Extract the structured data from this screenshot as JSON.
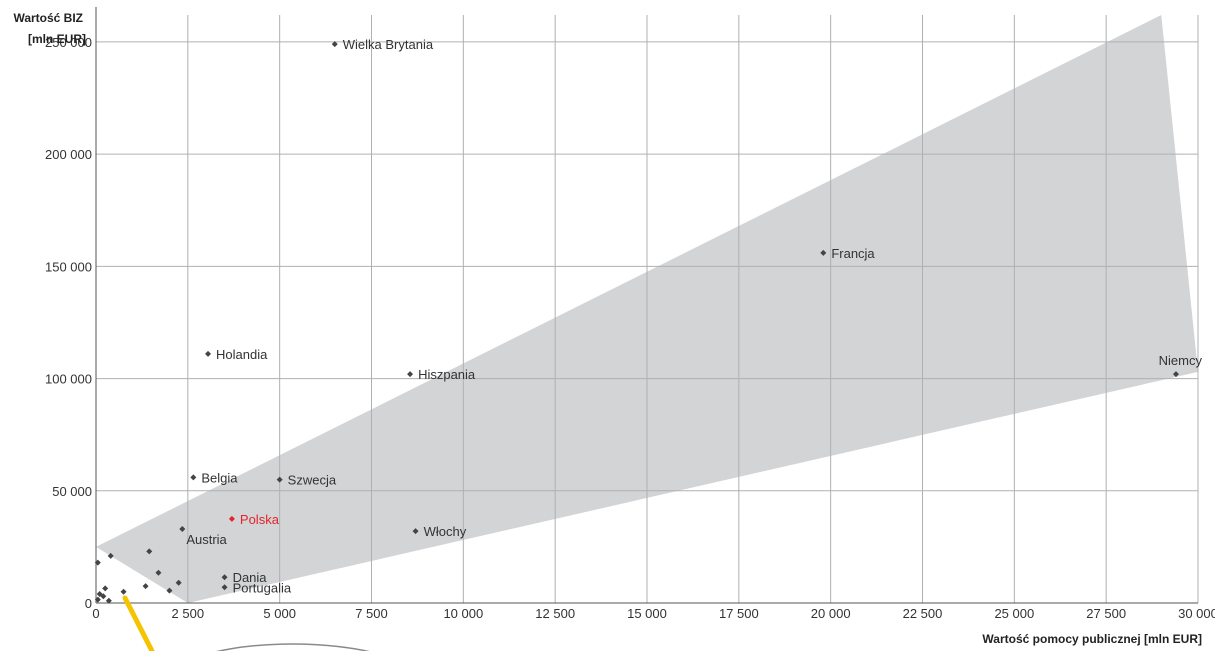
{
  "chart_data": {
    "type": "scatter",
    "xlabel": "Wartość pomocy publicznej [mln EUR]",
    "ylabel_line1": "Wartość BIZ",
    "ylabel_line2": "[mln EUR]",
    "xlim": [
      0,
      30000
    ],
    "ylim": [
      0,
      262000
    ],
    "x_ticks": [
      0,
      2500,
      5000,
      7500,
      10000,
      12500,
      15000,
      17500,
      20000,
      22500,
      25000,
      27500,
      30000
    ],
    "x_tick_labels": [
      "0",
      "2 500",
      "5 000",
      "7 500",
      "10 000",
      "12 500",
      "15 000",
      "17 500",
      "20 000",
      "22 500",
      "25 000",
      "27 500",
      "30 000"
    ],
    "y_ticks": [
      0,
      50000,
      100000,
      150000,
      200000,
      250000
    ],
    "y_tick_labels": [
      "0",
      "50 000",
      "100 000",
      "150 000",
      "200 000",
      "250 000"
    ],
    "grid": true,
    "band": {
      "upper_start": [
        0,
        25000
      ],
      "upper_end": [
        29000,
        262000
      ],
      "lower_start": [
        2500,
        0
      ],
      "lower_end": [
        30000,
        103000
      ],
      "color": "#d3d4d6"
    },
    "colors": {
      "point": "#444444",
      "highlight": "#e3242b",
      "grid": "#b0b0b0",
      "annotation": "#f5c400"
    },
    "points": [
      {
        "label": "Wielka Brytania",
        "x": 6500,
        "y": 249000
      },
      {
        "label": "Francja",
        "x": 19800,
        "y": 156000
      },
      {
        "label": "Niemcy",
        "x": 29400,
        "y": 102000,
        "label_side": "left-above"
      },
      {
        "label": "Holandia",
        "x": 3050,
        "y": 111000
      },
      {
        "label": "Hiszpania",
        "x": 8550,
        "y": 102000
      },
      {
        "label": "Belgia",
        "x": 2650,
        "y": 56000
      },
      {
        "label": "Szwecja",
        "x": 5000,
        "y": 55000
      },
      {
        "label": "Polska",
        "x": 3700,
        "y": 37500,
        "highlight": true
      },
      {
        "label": "Austria",
        "x": 2350,
        "y": 33000,
        "label_side": "below"
      },
      {
        "label": "Włochy",
        "x": 8700,
        "y": 32000
      },
      {
        "label": "Dania",
        "x": 3500,
        "y": 11500
      },
      {
        "label": "Portugalia",
        "x": 3500,
        "y": 7000
      },
      {
        "label": "",
        "x": 50,
        "y": 18000
      },
      {
        "label": "",
        "x": 100,
        "y": 4000
      },
      {
        "label": "",
        "x": 200,
        "y": 3000
      },
      {
        "label": "",
        "x": 250,
        "y": 6500
      },
      {
        "label": "",
        "x": 50,
        "y": 1500
      },
      {
        "label": "",
        "x": 350,
        "y": 1000
      },
      {
        "label": "",
        "x": 400,
        "y": 21000
      },
      {
        "label": "",
        "x": 750,
        "y": 5000
      },
      {
        "label": "",
        "x": 1350,
        "y": 7500
      },
      {
        "label": "",
        "x": 1450,
        "y": 23000
      },
      {
        "label": "",
        "x": 1700,
        "y": 13500
      },
      {
        "label": "",
        "x": 2000,
        "y": 5500
      },
      {
        "label": "",
        "x": 2250,
        "y": 9000
      }
    ]
  }
}
